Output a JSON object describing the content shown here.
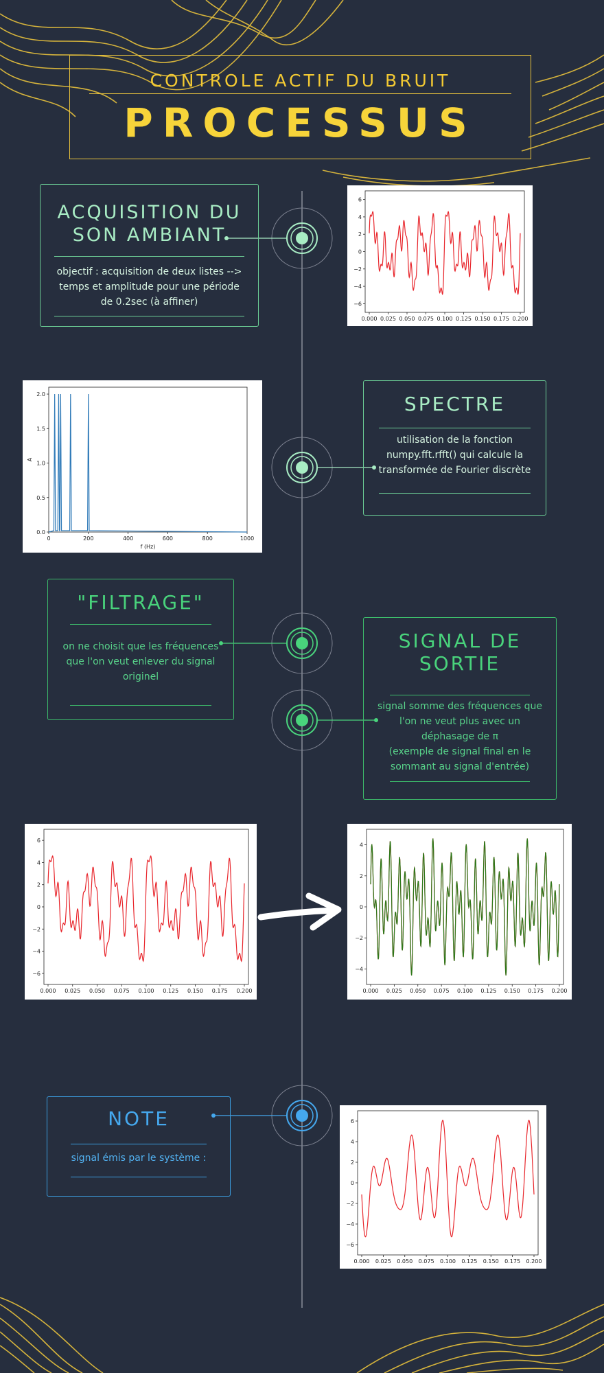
{
  "header": {
    "subtitle": "CONTROLE ACTIF DU BRUIT",
    "title": "PROCESSUS"
  },
  "steps": [
    {
      "title": "ACQUISITION DU SON AMBIANT",
      "body": "objectif : acquisition de deux listes --> temps et amplitude pour une période de 0.2sec (à affiner)"
    },
    {
      "title": "SPECTRE",
      "body": "utilisation de la fonction numpy.fft.rfft() qui calcule la transformée de Fourier discrète"
    },
    {
      "title": "\"FILTRAGE\"",
      "body": "on ne choisit que les fréquences que l'on veut enlever du signal originel"
    },
    {
      "title": "SIGNAL DE SORTIE",
      "body_line1": "signal somme des fréquences que l'on ne veut plus avec un déphasage de π",
      "body_line2": "(exemple de signal final en le sommant au signal d'entrée)"
    },
    {
      "title": "NOTE",
      "body": "signal émis par le système :"
    }
  ],
  "colors": {
    "background": "#262e3e",
    "gold": "#f2c933",
    "light_green": "#a8ecc4",
    "green": "#49d37c",
    "blue": "#45a8ee",
    "signal_red": "#e8262c",
    "signal_green": "#2a7a1a",
    "spectrum_blue": "#2f7ab8"
  },
  "chart_data": [
    {
      "id": "acquisition",
      "type": "line",
      "series": [
        {
          "color": "#e8262c",
          "generator": "noise_input"
        }
      ],
      "x_range": [
        0,
        0.2
      ],
      "ylim": [
        -7,
        7
      ],
      "x_ticks": [
        "0.000",
        "0.025",
        "0.050",
        "0.075",
        "0.100",
        "0.125",
        "0.150",
        "0.175",
        "0.200"
      ],
      "y_ticks": [
        "6",
        "4",
        "2",
        "0",
        "−2",
        "−4",
        "−6"
      ]
    },
    {
      "id": "spectrum",
      "type": "line",
      "xlabel": "f (Hz)",
      "ylabel": "A",
      "xlim": [
        0,
        1000
      ],
      "ylim": [
        0,
        2.1
      ],
      "peaks": [
        {
          "f": 30,
          "a": 2.0
        },
        {
          "f": 50,
          "a": 2.0
        },
        {
          "f": 60,
          "a": 2.0
        },
        {
          "f": 110,
          "a": 2.0
        },
        {
          "f": 200,
          "a": 2.0
        }
      ],
      "x_ticks": [
        "0",
        "200",
        "400",
        "600",
        "800",
        "1000"
      ],
      "y_ticks": [
        "2.0",
        "1.5",
        "1.0",
        "0.5",
        "0.0"
      ]
    },
    {
      "id": "input_signal",
      "type": "line",
      "series": [
        {
          "color": "#e8262c",
          "generator": "noise_input"
        }
      ],
      "x_range": [
        0,
        0.2
      ],
      "ylim": [
        -7,
        7
      ],
      "x_ticks": [
        "0.000",
        "0.025",
        "0.050",
        "0.075",
        "0.100",
        "0.125",
        "0.150",
        "0.175",
        "0.200"
      ],
      "y_ticks": [
        "6",
        "4",
        "2",
        "0",
        "−2",
        "−4",
        "−6"
      ]
    },
    {
      "id": "output_signal",
      "type": "line",
      "series": [
        {
          "color": "#e8262c",
          "generator": "sum"
        },
        {
          "color": "#2a7a1a",
          "generator": "sum"
        }
      ],
      "x_range": [
        0,
        0.2
      ],
      "ylim": [
        -4.6,
        4.4
      ],
      "x_ticks": [
        "0.000",
        "0.025",
        "0.050",
        "0.075",
        "0.100",
        "0.125",
        "0.150",
        "0.175",
        "0.200"
      ],
      "y_ticks": [
        "4",
        "2",
        "0",
        "−2",
        "−4"
      ]
    },
    {
      "id": "emitted_signal",
      "type": "line",
      "series": [
        {
          "color": "#e8262c",
          "generator": "low"
        }
      ],
      "x_range": [
        0,
        0.2
      ],
      "ylim": [
        -6,
        6
      ],
      "x_ticks": [
        "0.000",
        "0.025",
        "0.050",
        "0.075",
        "0.100",
        "0.125",
        "0.150",
        "0.175",
        "0.200"
      ],
      "y_ticks": [
        "6",
        "4",
        "2",
        "0",
        "−2",
        "−4",
        "−6"
      ]
    }
  ]
}
